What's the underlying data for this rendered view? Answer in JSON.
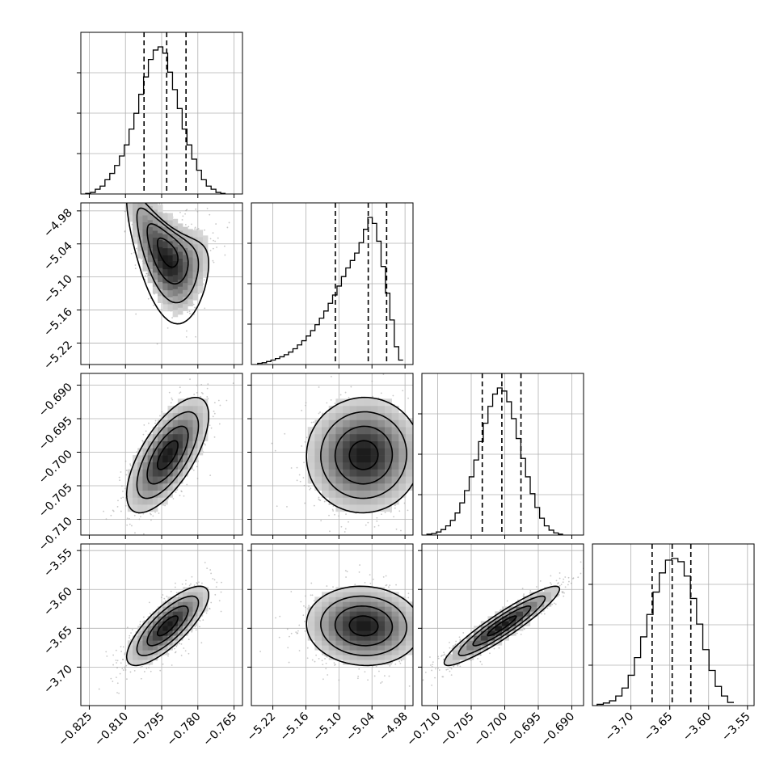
{
  "chart_data": {
    "type": "corner",
    "parameters": 4,
    "grid": true,
    "colors": {
      "ink": "#000000",
      "grid": "#b0b0b0",
      "scatter": "#9a9a9a"
    },
    "axes_ranges": [
      [
        -0.8285,
        -0.7615
      ],
      [
        -5.259,
        -4.9655
      ],
      [
        -0.71235,
        -0.68825
      ],
      [
        -3.7495,
        -3.5415
      ]
    ],
    "ticks": [
      {
        "values": [
          -0.825,
          -0.81,
          -0.795,
          -0.78,
          -0.765
        ],
        "labels": [
          "−0.825",
          "−0.810",
          "−0.795",
          "−0.780",
          "−0.765"
        ]
      },
      {
        "values": [
          -5.22,
          -5.16,
          -5.1,
          -5.04,
          -4.98
        ],
        "labels": [
          "−5.22",
          "−5.16",
          "−5.10",
          "−5.04",
          "−4.98"
        ]
      },
      {
        "values": [
          -0.71,
          -0.705,
          -0.7,
          -0.695,
          -0.69
        ],
        "labels": [
          "−0.710",
          "−0.705",
          "−0.700",
          "−0.695",
          "−0.690"
        ]
      },
      {
        "values": [
          -3.7,
          -3.65,
          -3.6,
          -3.55
        ],
        "labels": [
          "−3.70",
          "−3.65",
          "−3.60",
          "−3.55"
        ]
      }
    ],
    "histograms": [
      {
        "quantiles": [
          -0.8023,
          -0.7929,
          -0.7849
        ],
        "bin_edges": [
          -0.8265,
          -0.8245,
          -0.8225,
          -0.8205,
          -0.8185,
          -0.8165,
          -0.8145,
          -0.8125,
          -0.8105,
          -0.8085,
          -0.8065,
          -0.8045,
          -0.8025,
          -0.8005,
          -0.7985,
          -0.7965,
          -0.7945,
          -0.7925,
          -0.7905,
          -0.7885,
          -0.7865,
          -0.7845,
          -0.7825,
          -0.7805,
          -0.7785,
          -0.7765,
          -0.7745,
          -0.7725,
          -0.7705,
          -0.7685
        ],
        "counts": [
          0.2,
          0.5,
          1.5,
          2.5,
          4.5,
          6.5,
          9,
          12,
          15.5,
          20.5,
          25.5,
          31.5,
          37,
          42.5,
          45.5,
          46.5,
          44.5,
          38.5,
          33,
          27,
          20.5,
          15.5,
          11,
          7.5,
          4.5,
          2.5,
          1.5,
          0.5,
          0.2
        ]
      },
      {
        "quantiles": [
          -5.1065,
          -5.0468,
          -5.0134
        ],
        "bin_edges": [
          -5.2475,
          -5.2395,
          -5.2315,
          -5.2235,
          -5.2155,
          -5.2075,
          -5.1995,
          -5.1915,
          -5.1835,
          -5.1755,
          -5.1675,
          -5.1595,
          -5.1515,
          -5.1435,
          -5.1355,
          -5.1275,
          -5.1195,
          -5.1115,
          -5.1035,
          -5.0955,
          -5.0875,
          -5.0795,
          -5.0715,
          -5.0635,
          -5.0555,
          -5.0475,
          -5.0395,
          -5.0315,
          -5.0235,
          -5.0155,
          -5.0075,
          -4.9995,
          -4.9915,
          -4.9835
        ],
        "counts": [
          0.4,
          0.6,
          1,
          1.5,
          2,
          2.6,
          3.3,
          4.2,
          5.3,
          6.6,
          8,
          9.6,
          11.4,
          13.4,
          15.6,
          18,
          20.6,
          23.4,
          26.4,
          29.6,
          32.5,
          35,
          37.5,
          41,
          45.5,
          49.5,
          47.5,
          41.5,
          33,
          24,
          15,
          6,
          1.5
        ]
      },
      {
        "quantiles": [
          -0.70335,
          -0.70043,
          -0.69758
        ],
        "bin_edges": [
          -0.7116,
          -0.7109,
          -0.7102,
          -0.7095,
          -0.7088,
          -0.7081,
          -0.7074,
          -0.7067,
          -0.706,
          -0.7053,
          -0.7046,
          -0.7039,
          -0.7032,
          -0.7025,
          -0.7018,
          -0.7011,
          -0.7004,
          -0.6997,
          -0.699,
          -0.6983,
          -0.6976,
          -0.6969,
          -0.6962,
          -0.6955,
          -0.6948,
          -0.6941,
          -0.6934,
          -0.6927,
          -0.692,
          -0.6913
        ],
        "counts": [
          0.3,
          0.5,
          1,
          1.8,
          3,
          4.8,
          7.2,
          10.5,
          14.5,
          19,
          24.5,
          30.5,
          36.5,
          42,
          46,
          48,
          47,
          43.5,
          38,
          31.5,
          25,
          19,
          13.5,
          9,
          5.5,
          3,
          1.6,
          0.7,
          0.3
        ]
      },
      {
        "quantiles": [
          -3.6727,
          -3.6469,
          -3.6229
        ],
        "bin_edges": [
          -3.7435,
          -3.7355,
          -3.7275,
          -3.7195,
          -3.7115,
          -3.7035,
          -3.6955,
          -3.6875,
          -3.6795,
          -3.6715,
          -3.6635,
          -3.6555,
          -3.6475,
          -3.6395,
          -3.6315,
          -3.6235,
          -3.6155,
          -3.6075,
          -3.5995,
          -3.5915,
          -3.5835,
          -3.5755,
          -3.5675
        ],
        "counts": [
          0.4,
          0.8,
          1.5,
          3,
          5.5,
          9.5,
          15,
          21.5,
          28.5,
          35.5,
          41.5,
          45.5,
          46,
          45,
          40.5,
          33.5,
          25.5,
          17.5,
          11,
          6,
          3,
          1
        ]
      }
    ],
    "joint": [
      {
        "x": 0,
        "y": 1,
        "mean": [
          -0.7925,
          -5.055
        ],
        "std": [
          0.0085,
          0.052
        ],
        "rho": -0.55,
        "curvature": -0.0022,
        "hist_levels": [
          0.05,
          0.2,
          0.45,
          0.75,
          0.95
        ]
      },
      {
        "x": 0,
        "y": 2,
        "mean": [
          -0.7925,
          -0.70043
        ],
        "std": [
          0.0085,
          0.0043
        ],
        "rho": 0.68,
        "curvature": 0,
        "hist_levels": [
          0.05,
          0.2,
          0.45,
          0.75,
          0.95
        ]
      },
      {
        "x": 1,
        "y": 2,
        "mean": [
          -5.055,
          -0.70043
        ],
        "std": [
          0.052,
          0.0043
        ],
        "rho": 0.02,
        "curvature": 0,
        "hist_levels": [
          0.05,
          0.2,
          0.45,
          0.75,
          0.95
        ]
      },
      {
        "x": 0,
        "y": 3,
        "mean": [
          -0.7925,
          -3.6469
        ],
        "std": [
          0.0085,
          0.0255
        ],
        "rho": 0.78,
        "curvature": 0,
        "hist_levels": [
          0.05,
          0.2,
          0.45,
          0.75,
          0.95
        ]
      },
      {
        "x": 1,
        "y": 3,
        "mean": [
          -5.055,
          -3.6469
        ],
        "std": [
          0.052,
          0.0255
        ],
        "rho": -0.05,
        "curvature": 0,
        "hist_levels": [
          0.05,
          0.2,
          0.45,
          0.75,
          0.95
        ]
      },
      {
        "x": 2,
        "y": 3,
        "mean": [
          -0.70043,
          -3.6469
        ],
        "std": [
          0.0043,
          0.0255
        ],
        "rho": 0.93,
        "curvature": 0,
        "hist_levels": [
          0.05,
          0.2,
          0.45,
          0.75,
          0.95
        ]
      }
    ]
  }
}
